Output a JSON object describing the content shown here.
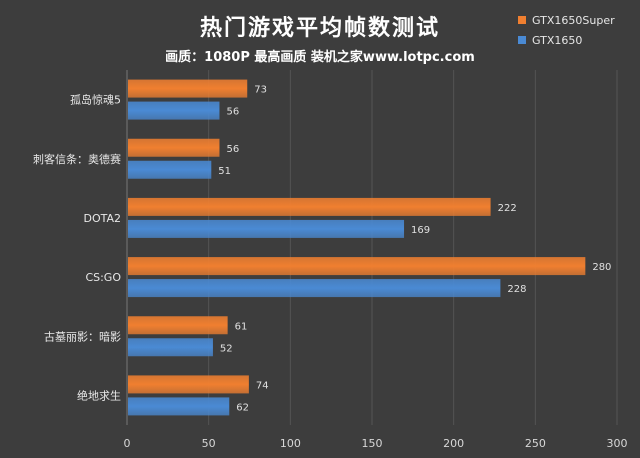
{
  "chart_data": {
    "type": "bar",
    "orientation": "horizontal",
    "title": "热门游戏平均帧数测试",
    "subtitle": "画质：1080P 最高画质 装机之家www.lotpc.com",
    "categories": [
      "孤岛惊魂5",
      "刺客信条：奥德赛",
      "DOTA2",
      "CS:GO",
      "古墓丽影：暗影",
      "绝地求生"
    ],
    "series": [
      {
        "name": "GTX1650Super",
        "color": "#f07f30",
        "values": [
          73,
          56,
          222,
          280,
          61,
          74
        ]
      },
      {
        "name": "GTX1650",
        "color": "#4a8ad4",
        "values": [
          56,
          51,
          169,
          228,
          52,
          62
        ]
      }
    ],
    "xlim": [
      0,
      300
    ],
    "x_ticks": [
      0,
      50,
      100,
      150,
      200,
      250,
      300
    ],
    "grid": true,
    "legend_position": "top-right"
  }
}
